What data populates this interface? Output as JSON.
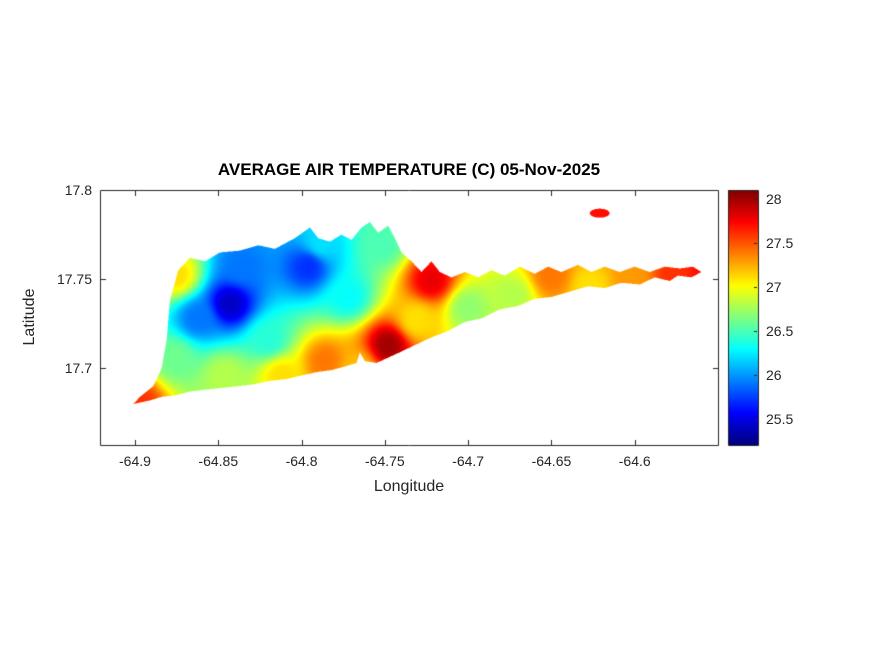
{
  "figure": {
    "title": "AVERAGE AIR TEMPERATURE (C) 05-Nov-2025",
    "xlabel": "Longitude",
    "ylabel": "Latitude",
    "background_color": "#ffffff",
    "axis_color": "#262626",
    "title_color": "#000000"
  },
  "chart_data": {
    "type": "heatmap",
    "title": "AVERAGE AIR TEMPERATURE (C) 05-Nov-2025",
    "xlabel": "Longitude",
    "ylabel": "Latitude",
    "xlim": [
      -64.921,
      -64.55
    ],
    "ylim": [
      17.657,
      17.8
    ],
    "x_ticks": [
      -64.9,
      -64.85,
      -64.8,
      -64.75,
      -64.7,
      -64.65,
      -64.6
    ],
    "x_tick_labels": [
      "-64.9",
      "-64.85",
      "-64.8",
      "-64.75",
      "-64.7",
      "-64.65",
      "-64.6"
    ],
    "y_ticks": [
      17.8,
      17.75,
      17.7
    ],
    "y_tick_labels": [
      "17.8",
      "17.75",
      "17.7"
    ],
    "colormap": "jet",
    "clim": [
      25.2,
      28.1
    ],
    "colorbar_ticks": [
      28,
      27.5,
      27,
      26.5,
      26,
      25.5
    ],
    "colorbar_tick_labels": [
      "28",
      "27.5",
      "27",
      "26.5",
      "26",
      "25.5"
    ],
    "grid": false,
    "legend": "colorbar-right",
    "stations": [
      {
        "lon": -64.898,
        "lat": 17.681,
        "temp": 27.6
      },
      {
        "lon": -64.875,
        "lat": 17.752,
        "temp": 27.1
      },
      {
        "lon": -64.862,
        "lat": 17.728,
        "temp": 25.9
      },
      {
        "lon": -64.843,
        "lat": 17.736,
        "temp": 25.4
      },
      {
        "lon": -64.836,
        "lat": 17.757,
        "temp": 25.9
      },
      {
        "lon": -64.82,
        "lat": 17.716,
        "temp": 26.4
      },
      {
        "lon": -64.796,
        "lat": 17.757,
        "temp": 25.7
      },
      {
        "lon": -64.846,
        "lat": 17.696,
        "temp": 26.8
      },
      {
        "lon": -64.876,
        "lat": 17.706,
        "temp": 26.6
      },
      {
        "lon": -64.812,
        "lat": 17.696,
        "temp": 27.1
      },
      {
        "lon": -64.786,
        "lat": 17.704,
        "temp": 27.4
      },
      {
        "lon": -64.766,
        "lat": 17.7,
        "temp": 27.2
      },
      {
        "lon": -64.748,
        "lat": 17.713,
        "temp": 28.0
      },
      {
        "lon": -64.772,
        "lat": 17.74,
        "temp": 26.3
      },
      {
        "lon": -64.788,
        "lat": 17.77,
        "temp": 26.2
      },
      {
        "lon": -64.752,
        "lat": 17.77,
        "temp": 26.5
      },
      {
        "lon": -64.722,
        "lat": 17.749,
        "temp": 27.8
      },
      {
        "lon": -64.731,
        "lat": 17.727,
        "temp": 27.1
      },
      {
        "lon": -64.7,
        "lat": 17.734,
        "temp": 26.7
      },
      {
        "lon": -64.673,
        "lat": 17.741,
        "temp": 26.8
      },
      {
        "lon": -64.65,
        "lat": 17.752,
        "temp": 27.4
      },
      {
        "lon": -64.627,
        "lat": 17.746,
        "temp": 27.1
      },
      {
        "lon": -64.601,
        "lat": 17.75,
        "temp": 27.3
      },
      {
        "lon": -64.576,
        "lat": 17.751,
        "temp": 27.6
      },
      {
        "lon": -64.558,
        "lat": 17.754,
        "temp": 27.7
      },
      {
        "lon": -64.621,
        "lat": 17.787,
        "temp": 27.7
      }
    ],
    "island_outline": [
      [
        -64.901,
        17.68
      ],
      [
        -64.897,
        17.684
      ],
      [
        -64.889,
        17.69
      ],
      [
        -64.884,
        17.7
      ],
      [
        -64.881,
        17.716
      ],
      [
        -64.879,
        17.738
      ],
      [
        -64.874,
        17.755
      ],
      [
        -64.867,
        17.762
      ],
      [
        -64.858,
        17.76
      ],
      [
        -64.849,
        17.765
      ],
      [
        -64.837,
        17.766
      ],
      [
        -64.826,
        17.769
      ],
      [
        -64.816,
        17.767
      ],
      [
        -64.804,
        17.773
      ],
      [
        -64.795,
        17.779
      ],
      [
        -64.79,
        17.773
      ],
      [
        -64.783,
        17.771
      ],
      [
        -64.776,
        17.775
      ],
      [
        -64.77,
        17.772
      ],
      [
        -64.764,
        17.779
      ],
      [
        -64.759,
        17.782
      ],
      [
        -64.754,
        17.776
      ],
      [
        -64.748,
        17.78
      ],
      [
        -64.744,
        17.773
      ],
      [
        -64.74,
        17.765
      ],
      [
        -64.734,
        17.76
      ],
      [
        -64.728,
        17.754
      ],
      [
        -64.722,
        17.76
      ],
      [
        -64.717,
        17.754
      ],
      [
        -64.71,
        17.751
      ],
      [
        -64.702,
        17.754
      ],
      [
        -64.694,
        17.751
      ],
      [
        -64.686,
        17.755
      ],
      [
        -64.678,
        17.752
      ],
      [
        -64.669,
        17.757
      ],
      [
        -64.66,
        17.753
      ],
      [
        -64.652,
        17.757
      ],
      [
        -64.644,
        17.754
      ],
      [
        -64.634,
        17.758
      ],
      [
        -64.626,
        17.754
      ],
      [
        -64.618,
        17.757
      ],
      [
        -64.609,
        17.754
      ],
      [
        -64.6,
        17.757
      ],
      [
        -64.591,
        17.754
      ],
      [
        -64.582,
        17.757
      ],
      [
        -64.573,
        17.756
      ],
      [
        -64.565,
        17.757
      ],
      [
        -64.56,
        17.754
      ],
      [
        -64.566,
        17.751
      ],
      [
        -64.574,
        17.752
      ],
      [
        -64.579,
        17.749
      ],
      [
        -64.588,
        17.751
      ],
      [
        -64.597,
        17.747
      ],
      [
        -64.608,
        17.748
      ],
      [
        -64.618,
        17.745
      ],
      [
        -64.628,
        17.746
      ],
      [
        -64.639,
        17.743
      ],
      [
        -64.65,
        17.74
      ],
      [
        -64.66,
        17.739
      ],
      [
        -64.67,
        17.735
      ],
      [
        -64.681,
        17.733
      ],
      [
        -64.692,
        17.728
      ],
      [
        -64.702,
        17.726
      ],
      [
        -64.712,
        17.721
      ],
      [
        -64.723,
        17.717
      ],
      [
        -64.732,
        17.713
      ],
      [
        -64.741,
        17.709
      ],
      [
        -64.748,
        17.706
      ],
      [
        -64.755,
        17.703
      ],
      [
        -64.762,
        17.704
      ],
      [
        -64.765,
        17.709
      ],
      [
        -64.767,
        17.703
      ],
      [
        -64.774,
        17.701
      ],
      [
        -64.782,
        17.699
      ],
      [
        -64.79,
        17.698
      ],
      [
        -64.8,
        17.696
      ],
      [
        -64.809,
        17.694
      ],
      [
        -64.819,
        17.693
      ],
      [
        -64.829,
        17.691
      ],
      [
        -64.838,
        17.69
      ],
      [
        -64.848,
        17.689
      ],
      [
        -64.858,
        17.688
      ],
      [
        -64.867,
        17.687
      ],
      [
        -64.875,
        17.685
      ],
      [
        -64.884,
        17.684
      ],
      [
        -64.891,
        17.682
      ]
    ],
    "islets": [
      {
        "cx": -64.621,
        "cy": 17.787,
        "rx": 0.006,
        "ry": 0.0025
      }
    ]
  }
}
